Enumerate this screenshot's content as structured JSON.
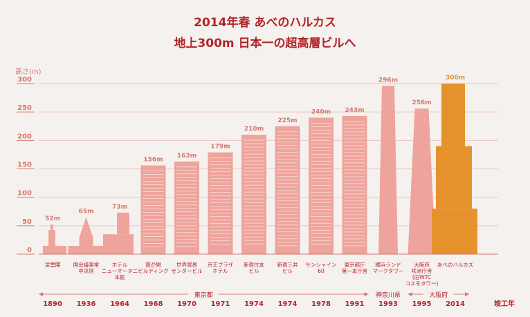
{
  "chart_data": {
    "type": "bar",
    "title_line1": "2014年春 あべのハルカス",
    "title_line2": "地上300m 日本一の超高層ビルへ",
    "ylabel": "高さ(m)",
    "ylim": [
      0,
      300
    ],
    "yticks": [
      0,
      50,
      100,
      150,
      200,
      250,
      300
    ],
    "xlabel": "竣工年",
    "grid": true,
    "colors": {
      "building": "#eea49c",
      "highlight": "#e6922c",
      "text": "#b3242a",
      "axis": "#d4796f"
    },
    "buildings": [
      {
        "name": "凌雲閣",
        "height": 52,
        "value_label": "52m",
        "year": "1890"
      },
      {
        "name": "国会議事堂\n中央塔",
        "height": 65,
        "value_label": "65m",
        "year": "1936"
      },
      {
        "name": "ホテル\nニューオータニ\n本館",
        "height": 73,
        "value_label": "73m",
        "year": "1964"
      },
      {
        "name": "霞が関\nビルディング",
        "height": 156,
        "value_label": "156m",
        "year": "1968"
      },
      {
        "name": "世界貿易\nセンタービル",
        "height": 163,
        "value_label": "163m",
        "year": "1970"
      },
      {
        "name": "京王プラザ\nホテル",
        "height": 179,
        "value_label": "179m",
        "year": "1971"
      },
      {
        "name": "新宿住友\nビル",
        "height": 210,
        "value_label": "210m",
        "year": "1974"
      },
      {
        "name": "新宿三井\nビル",
        "height": 225,
        "value_label": "225m",
        "year": "1974"
      },
      {
        "name": "サンシャイン\n60",
        "height": 240,
        "value_label": "240m",
        "year": "1978"
      },
      {
        "name": "東京都庁\n第一本庁舎",
        "height": 243,
        "value_label": "243m",
        "year": "1991"
      },
      {
        "name": "横浜ランド\nマークタワー",
        "height": 296,
        "value_label": "296m",
        "year": "1993"
      },
      {
        "name": "大阪府\n咲洲庁舎\n(旧WTC\nコスモタワー)",
        "height": 256,
        "value_label": "256m",
        "year": "1995"
      },
      {
        "name": "あべのハルカス",
        "height": 300,
        "value_label": "300m",
        "year": "2014",
        "highlight": true
      }
    ],
    "regions": [
      {
        "label": "東京都",
        "from": 0,
        "to": 9
      },
      {
        "label": "神奈川県",
        "from": 10,
        "to": 10
      },
      {
        "label": "大阪府",
        "from": 11,
        "to": 12
      }
    ]
  }
}
